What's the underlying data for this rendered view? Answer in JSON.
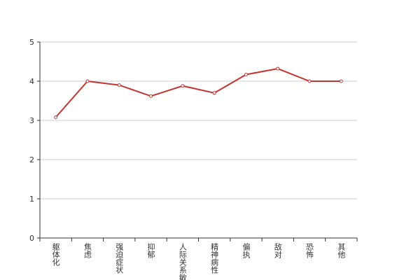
{
  "chart_data": {
    "type": "line",
    "categories": [
      "躯体化",
      "焦虑",
      "强迫症状",
      "抑郁",
      "人际关系敏感",
      "精神病性",
      "偏执",
      "敌对",
      "恐怖",
      "其他"
    ],
    "series": [
      {
        "color": "#c23531",
        "values": [
          3.08,
          4.0,
          3.9,
          3.62,
          3.88,
          3.7,
          4.17,
          4.32,
          4.0,
          4.0
        ]
      }
    ],
    "ylim": [
      0,
      5
    ],
    "yticks": [
      0,
      1,
      2,
      3,
      4,
      5
    ],
    "grid": true
  }
}
